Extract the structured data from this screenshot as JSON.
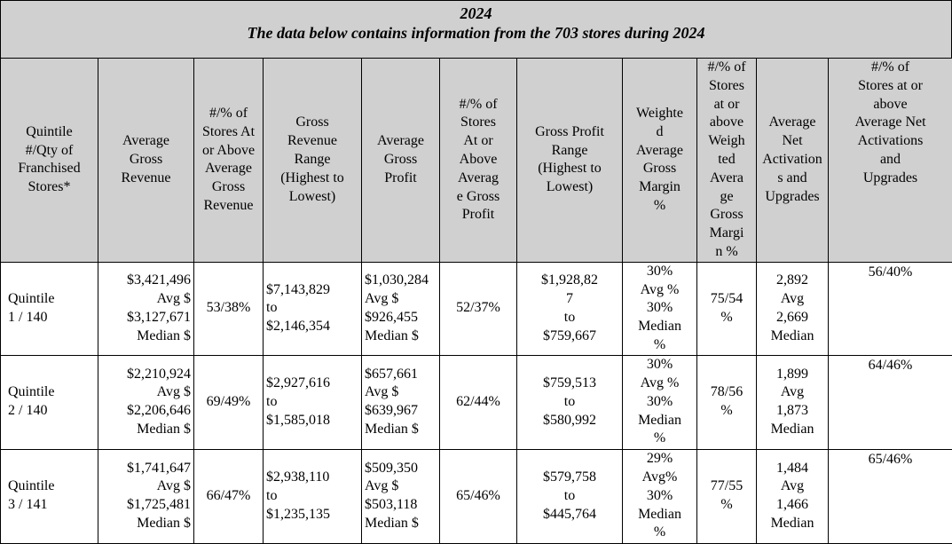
{
  "title": {
    "year": "2024",
    "subtitle": "The data below contains information from the 703 stores during 2024"
  },
  "headers": [
    [
      "Quintile",
      "#/Qty of",
      "Franchised",
      "Stores*"
    ],
    [
      "Average",
      "Gross",
      "Revenue"
    ],
    [
      "#/% of",
      "Stores At",
      "or Above",
      "Average",
      "Gross",
      "Revenue"
    ],
    [
      "Gross",
      "Revenue",
      "Range",
      "(Highest to",
      "Lowest)"
    ],
    [
      "Average",
      "Gross",
      "Profit"
    ],
    [
      "#/% of",
      "Stores",
      "At or",
      "Above",
      "Averag",
      "e Gross",
      "Profit"
    ],
    [
      "Gross Profit",
      "Range",
      "(Highest to",
      "Lowest)"
    ],
    [
      "Weighte",
      "d",
      "Average",
      "Gross",
      "Margin",
      "%"
    ],
    [
      "#/% of",
      "Stores",
      "at or",
      "above",
      "Weigh",
      "ted",
      "Avera",
      "ge",
      "Gross",
      "Margi",
      "n %"
    ],
    [
      "Average",
      "Net",
      "Activation",
      "s and",
      "Upgrades"
    ],
    [
      "#/% of",
      "Stores at or",
      "above",
      "Average Net",
      "Activations",
      "and",
      "Upgrades"
    ]
  ],
  "rows": [
    {
      "quintile": [
        "Quintile",
        "1 / 140"
      ],
      "avg_gross_revenue": [
        "$3,421,496",
        "Avg $",
        "$3,127,671",
        "Median $"
      ],
      "stores_above_avg_revenue": "53/38%",
      "revenue_range": [
        "$7,143,829",
        "to",
        "$2,146,354"
      ],
      "avg_gross_profit": [
        "$1,030,284",
        "Avg $",
        "$926,455",
        "Median $"
      ],
      "stores_above_avg_profit": "52/37%",
      "profit_range": [
        "$1,928,82",
        "7",
        "to",
        "$759,667"
      ],
      "weighted_margin": [
        "30%",
        "Avg %",
        "30%",
        "Median",
        "%"
      ],
      "stores_above_margin": [
        "75/54",
        "%"
      ],
      "avg_activations": [
        "2,892",
        "Avg",
        "2,669",
        "Median"
      ],
      "stores_above_activations": "56/40%"
    },
    {
      "quintile": [
        "Quintile",
        "2 / 140"
      ],
      "avg_gross_revenue": [
        "$2,210,924",
        "Avg $",
        "$2,206,646",
        "Median $"
      ],
      "stores_above_avg_revenue": "69/49%",
      "revenue_range": [
        "$2,927,616",
        "to",
        "$1,585,018"
      ],
      "avg_gross_profit": [
        "$657,661",
        "Avg $",
        "$639,967",
        "Median $"
      ],
      "stores_above_avg_profit": "62/44%",
      "profit_range": [
        "$759,513",
        "to",
        "$580,992"
      ],
      "weighted_margin": [
        "30%",
        "Avg %",
        "30%",
        "Median",
        "%"
      ],
      "stores_above_margin": [
        "78/56",
        "%"
      ],
      "avg_activations": [
        "1,899",
        "Avg",
        "1,873",
        "Median"
      ],
      "stores_above_activations": "64/46%"
    },
    {
      "quintile": [
        "Quintile",
        "3 / 141"
      ],
      "avg_gross_revenue": [
        "$1,741,647",
        "Avg $",
        "$1,725,481",
        "Median $"
      ],
      "stores_above_avg_revenue": "66/47%",
      "revenue_range": [
        "$2,938,110",
        "to",
        "$1,235,135"
      ],
      "avg_gross_profit": [
        "$509,350",
        "Avg $",
        "$503,118",
        "Median $"
      ],
      "stores_above_avg_profit": "65/46%",
      "profit_range": [
        "$579,758",
        "to",
        "$445,764"
      ],
      "weighted_margin": [
        "29%",
        "Avg%",
        "30%",
        "Median",
        "%"
      ],
      "stores_above_margin": [
        "77/55",
        "%"
      ],
      "avg_activations": [
        "1,484",
        "Avg",
        "1,466",
        "Median"
      ],
      "stores_above_activations": "65/46%"
    }
  ]
}
